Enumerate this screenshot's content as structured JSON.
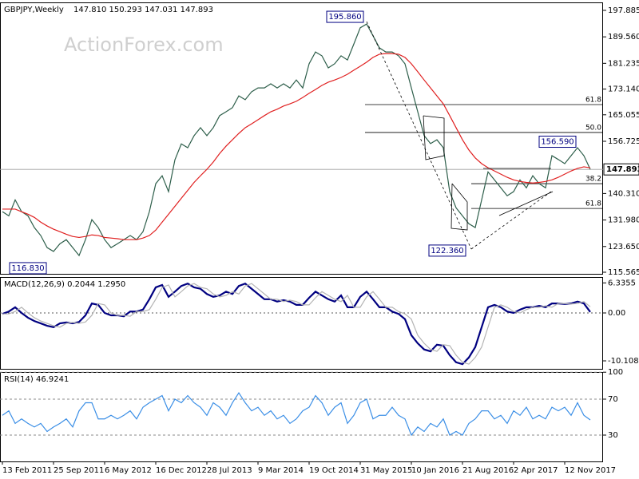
{
  "chart_data": [
    {
      "type": "line",
      "title": "GBPJPY,Weekly",
      "subtitle": "147.810 150.293 147.031 147.893",
      "watermark": "ActionForex.com",
      "ylim": [
        115.06,
        200.39
      ],
      "yticks": [
        197.885,
        {
          "value": 189.56,
          "label": "189.560"
        },
        181.235,
        {
          "value": 173.14,
          "label": "173.140"
        },
        165.055,
        156.725,
        {
          "value": 140.31,
          "label": "140.310"
        },
        {
          "value": 131.98,
          "label": "131.980"
        },
        {
          "value": 123.65,
          "label": "123.650"
        },
        115.565
      ],
      "last_price": 147.893,
      "series": [
        {
          "color": "#2d5e4a",
          "values": [
            134.6,
            133.3,
            138.3,
            134.6,
            133.3,
            129.6,
            127.1,
            123.3,
            122.1,
            124.5,
            125.8,
            123.3,
            120.8,
            125.8,
            132.1,
            129.6,
            125.8,
            123.3,
            124.5,
            125.8,
            127.1,
            125.8,
            128.3,
            134.6,
            143.4,
            145.9,
            140.9,
            150.9,
            155.9,
            154.7,
            158.5,
            161.0,
            158.5,
            161.0,
            164.8,
            166.0,
            167.3,
            171.0,
            169.8,
            172.3,
            173.5,
            173.5,
            174.8,
            173.5,
            174.8,
            173.5,
            176.0,
            173.5,
            181.1,
            184.8,
            183.6,
            179.8,
            181.1,
            183.6,
            182.3,
            187.3,
            192.4,
            193.6,
            189.9,
            186.1,
            184.8,
            184.8,
            183.6,
            181.1,
            173.5,
            166.0,
            158.5,
            156.0,
            157.2,
            154.7,
            140.9,
            135.8,
            133.3,
            130.8,
            129.6,
            138.3,
            147.1,
            144.6,
            142.1,
            139.6,
            140.9,
            144.6,
            142.1,
            145.9,
            143.4,
            142.1,
            152.2,
            151.0,
            149.7,
            152.2,
            154.7,
            152.2,
            147.893
          ]
        },
        {
          "color": "#e02020",
          "values": [
            135.4,
            135.4,
            135.4,
            134.6,
            133.8,
            132.8,
            131.3,
            130.1,
            129.1,
            128.3,
            127.5,
            126.8,
            126.5,
            126.8,
            127.3,
            127.1,
            126.5,
            126.3,
            126.1,
            125.8,
            125.8,
            125.8,
            126.3,
            127.1,
            128.8,
            131.3,
            133.8,
            136.3,
            138.8,
            141.3,
            143.8,
            145.9,
            147.9,
            150.2,
            152.9,
            155.2,
            157.2,
            159.2,
            161.0,
            162.2,
            163.5,
            164.8,
            166.0,
            166.8,
            167.8,
            168.5,
            169.3,
            170.5,
            171.8,
            173.0,
            174.3,
            175.3,
            176.0,
            176.8,
            177.8,
            179.1,
            180.3,
            181.6,
            183.1,
            184.1,
            184.3,
            184.3,
            184.1,
            183.1,
            181.1,
            178.6,
            176.0,
            173.5,
            171.0,
            168.5,
            164.8,
            161.0,
            157.2,
            154.0,
            151.5,
            149.7,
            148.4,
            147.4,
            146.4,
            145.4,
            144.6,
            144.1,
            143.8,
            143.6,
            143.8,
            144.1,
            144.6,
            145.4,
            146.4,
            147.4,
            148.2,
            148.7,
            148.4
          ]
        }
      ],
      "levels": [
        {
          "label": "61.8",
          "price": 168.27
        },
        {
          "label": "50.0",
          "price": 159.5
        },
        {
          "label": "38.2",
          "price": 143.4
        },
        {
          "label": "61.8",
          "price": 135.6
        }
      ],
      "annotations": [
        {
          "label": "195.860",
          "value": 195.86
        },
        {
          "label": "116.830",
          "value": 116.83
        },
        {
          "label": "122.360",
          "value": 122.36
        },
        {
          "label": "156.590",
          "value": 156.59
        }
      ]
    },
    {
      "type": "line",
      "title": "MACD(12,26,9) 0.2044 1.2950",
      "ylim": [
        -11.79,
        7.58
      ],
      "yticks": [
        6.3355,
        {
          "value": 0,
          "label": "0.00"
        },
        -10.1082
      ],
      "series": [
        {
          "color": "#000080",
          "values": [
            -0.2,
            0.3,
            1.2,
            0,
            -1.0,
            -1.7,
            -2.2,
            -2.7,
            -3.0,
            -2.2,
            -2.0,
            -2.2,
            -1.9,
            -0.5,
            2.0,
            1.7,
            0,
            -0.5,
            -0.5,
            -0.7,
            0.3,
            0.3,
            0.7,
            2.9,
            5.4,
            5.9,
            3.4,
            4.5,
            5.7,
            6.2,
            5.4,
            5.1,
            4.0,
            3.4,
            3.7,
            4.5,
            4.0,
            5.7,
            6.2,
            5.1,
            4.0,
            2.9,
            2.9,
            2.4,
            2.7,
            2.4,
            1.7,
            1.7,
            3.2,
            4.5,
            3.7,
            2.9,
            2.4,
            3.7,
            1.2,
            1.2,
            3.4,
            4.5,
            2.9,
            1.2,
            1.2,
            0.3,
            -0.2,
            -1.3,
            -4.7,
            -6.4,
            -7.7,
            -8.1,
            -6.7,
            -6.9,
            -8.9,
            -10.4,
            -10.8,
            -9.4,
            -7.2,
            -3.0,
            1.2,
            1.7,
            1.2,
            0.3,
            0,
            0.7,
            1.2,
            1.2,
            1.5,
            1.2,
            2.0,
            2.0,
            1.9,
            2.0,
            2.4,
            2.0,
            0.2044
          ]
        },
        {
          "color": "#b4b4b4",
          "values": [
            -0.2,
            -0.2,
            0.3,
            1.2,
            0,
            -1.0,
            -1.7,
            -2.2,
            -2.7,
            -3.0,
            -2.2,
            -2.0,
            -2.2,
            -1.9,
            -0.5,
            2.0,
            1.7,
            0,
            -0.5,
            -0.5,
            -0.7,
            0.3,
            0.3,
            0.7,
            2.9,
            5.4,
            5.9,
            3.4,
            4.5,
            5.7,
            6.2,
            5.4,
            5.1,
            4.0,
            3.4,
            3.7,
            4.5,
            4.0,
            5.7,
            6.2,
            5.1,
            4.0,
            2.9,
            2.9,
            2.4,
            2.7,
            2.4,
            1.7,
            1.7,
            3.2,
            4.5,
            3.7,
            2.9,
            2.4,
            3.7,
            1.2,
            1.2,
            3.4,
            4.5,
            2.9,
            1.2,
            1.2,
            0.3,
            -0.2,
            -1.3,
            -4.7,
            -6.4,
            -7.7,
            -8.1,
            -6.7,
            -6.9,
            -8.9,
            -10.4,
            -10.8,
            -9.4,
            -7.2,
            -3.0,
            1.2,
            1.7,
            1.2,
            0.3,
            0,
            0.7,
            1.2,
            1.2,
            1.5,
            1.2,
            2.0,
            2.0,
            1.9,
            2.0,
            2.4,
            1.295
          ]
        }
      ]
    },
    {
      "type": "line",
      "title": "RSI(14) 46.9241",
      "ylim": [
        0.67,
        100.2
      ],
      "yticks": [
        100,
        70,
        30
      ],
      "grid": true,
      "series": [
        {
          "color": "#3a8ee6",
          "values": [
            52,
            57,
            43,
            48,
            43,
            39,
            43,
            34,
            39,
            43,
            48,
            39,
            57,
            66,
            66,
            48,
            48,
            52,
            48,
            52,
            57,
            48,
            61,
            66,
            70,
            74,
            57,
            70,
            66,
            74,
            66,
            61,
            52,
            66,
            61,
            52,
            66,
            77,
            66,
            57,
            61,
            52,
            57,
            48,
            52,
            43,
            48,
            57,
            61,
            74,
            66,
            52,
            61,
            66,
            43,
            52,
            66,
            70,
            48,
            52,
            52,
            61,
            52,
            48,
            30,
            39,
            34,
            43,
            39,
            48,
            30,
            34,
            30,
            43,
            48,
            57,
            57,
            48,
            52,
            43,
            57,
            52,
            61,
            48,
            52,
            48,
            61,
            57,
            61,
            52,
            66,
            52,
            46.9241
          ]
        }
      ],
      "categories": [
        "13 Feb 2011",
        null,
        null,
        null,
        null,
        null,
        null,
        null,
        "25 Sep 2011",
        null,
        null,
        null,
        null,
        null,
        null,
        null,
        "6 May 2012",
        null,
        null,
        null,
        null,
        null,
        null,
        null,
        "16 Dec 2012",
        null,
        null,
        null,
        null,
        null,
        null,
        null,
        "28 Jul 2013",
        null,
        null,
        null,
        null,
        null,
        null,
        null,
        "9 Mar 2014",
        null,
        null,
        null,
        null,
        null,
        null,
        null,
        "19 Oct 2014",
        null,
        null,
        null,
        null,
        null,
        null,
        null,
        "31 May 2015",
        null,
        null,
        null,
        null,
        null,
        null,
        null,
        "10 Jan 2016",
        null,
        null,
        null,
        null,
        null,
        null,
        null,
        "21 Aug 2016",
        null,
        null,
        null,
        null,
        null,
        null,
        null,
        "2 Apr 2017",
        null,
        null,
        null,
        null,
        null,
        null,
        null,
        "12 Nov 2017",
        null,
        null,
        null,
        null
      ]
    }
  ]
}
